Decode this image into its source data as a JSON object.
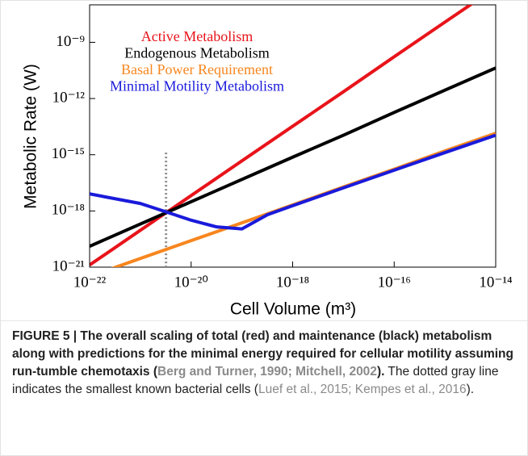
{
  "chart_data": {
    "type": "line",
    "xscale": "log",
    "yscale": "log",
    "xlabel": "Cell Volume (m³)",
    "ylabel": "Metabolic Rate (W)",
    "xlim": [
      1e-22,
      1e-14
    ],
    "ylim": [
      1e-21,
      1e-07
    ],
    "xticks": [
      {
        "value": 1e-22,
        "label": "10⁻²²"
      },
      {
        "value": 1e-20,
        "label": "10⁻²⁰"
      },
      {
        "value": 1e-18,
        "label": "10⁻¹⁸"
      },
      {
        "value": 1e-16,
        "label": "10⁻¹⁶"
      },
      {
        "value": 1e-14,
        "label": "10⁻¹⁴"
      }
    ],
    "yticks": [
      {
        "value": 1e-21,
        "label": "10⁻²¹"
      },
      {
        "value": 1e-18,
        "label": "10⁻¹⁸"
      },
      {
        "value": 1e-15,
        "label": "10⁻¹⁵"
      },
      {
        "value": 1e-12,
        "label": "10⁻¹²"
      },
      {
        "value": 1e-09,
        "label": "10⁻⁹"
      }
    ],
    "grid": false,
    "x": [
      1e-22,
      1e-21,
      1e-20,
      1e-19,
      1e-18,
      1e-17,
      1e-16,
      1e-15,
      1e-14
    ],
    "series": [
      {
        "name": "Active Metabolism",
        "color": "#e8141b",
        "values": [
          1.3e-21,
          9.3e-20,
          6.6e-18,
          4.7e-16,
          3.3e-14,
          2.3e-12,
          1.7e-10,
          1.2e-08,
          8.3e-07
        ]
      },
      {
        "name": "Endogenous Metabolism",
        "color": "#000000",
        "values": [
          1.3e-20,
          2e-19,
          3.1e-18,
          4.8e-17,
          7.4e-16,
          1.1e-14,
          1.8e-13,
          2.8e-12,
          4.3e-11
        ]
      },
      {
        "name": "Basal Power Requirement",
        "color": "#f7861e",
        "values": [
          3.2e-22,
          2.9e-21,
          2.6e-20,
          2.3e-19,
          2.1e-18,
          1.9e-17,
          1.7e-16,
          1.6e-15,
          1.4e-14
        ]
      },
      {
        "name": "Minimal Motility Metabolism",
        "color": "#1a1adb",
        "x": [
          1e-22,
          1e-21,
          3.2e-21,
          1e-20,
          3.2e-20,
          1e-19,
          3.2e-19,
          1e-18,
          1e-17,
          1e-16,
          1e-15,
          1e-14
        ],
        "values": [
          8.1e-18,
          2.5e-18,
          8.9e-19,
          3.2e-19,
          1.4e-19,
          1.1e-19,
          6.3e-19,
          1.9e-18,
          1.7e-17,
          1.5e-16,
          1.3e-15,
          1.1e-14
        ]
      }
    ],
    "reference_line": {
      "x": 3.2e-21,
      "ytop": 1.3e-15,
      "color": "#8c8c8c"
    },
    "caption": [
      "FIGURE 5 | The overall scaling of total (red) and maintenance (black) metabolism along with predictions for the minimal energy required for cellular motility assuming run-tumble chemotaxis (",
      "Berg and Turner, 1990; Mitchell, 2002",
      ").",
      " The dotted gray line indicates the smallest known bacterial cells (",
      "Luef et al., 2015; Kempes et al., 2016",
      ")."
    ]
  }
}
